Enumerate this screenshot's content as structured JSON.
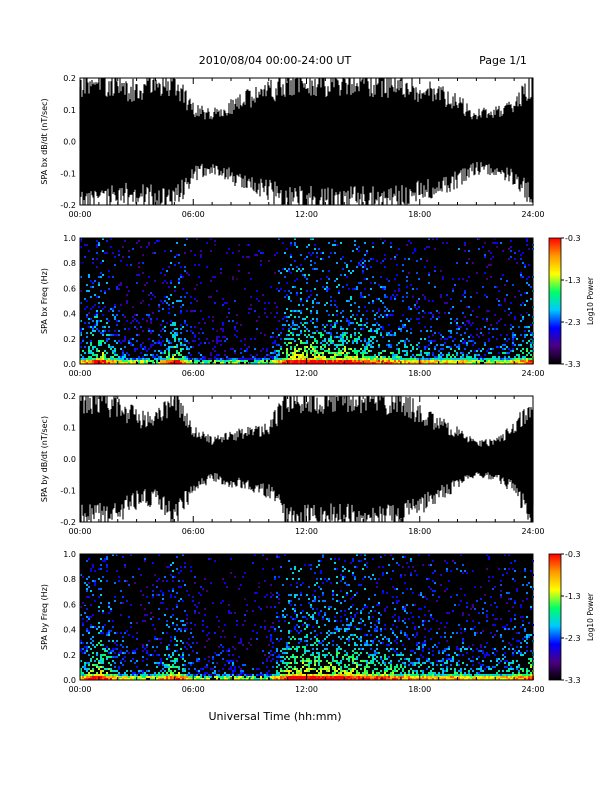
{
  "header": {
    "title": "2010/08/04  00:00-24:00 UT",
    "page": "Page 1/1"
  },
  "footer": {
    "xlabel": "Universal Time (hh:mm)"
  },
  "colorbar": {
    "label": "Log10 Power",
    "ticks": [
      "-0.3",
      "-1.3",
      "-2.3",
      "-3.3"
    ],
    "range": [
      -3.3,
      -0.3
    ],
    "stops": [
      "#000000",
      "#4b0082",
      "#0000ff",
      "#00c8ff",
      "#00ff66",
      "#ffff00",
      "#ff9900",
      "#ff0000"
    ]
  },
  "chart_data": [
    {
      "type": "line",
      "ylabel": "SPA bx dB/dt (nT/sec)",
      "xticks": [
        "00:00",
        "06:00",
        "12:00",
        "18:00",
        "24:00"
      ],
      "yticks": [
        "-0.2",
        "-0.1",
        "0.0",
        "0.1",
        "0.2"
      ],
      "xlim_hours": [
        0,
        24
      ],
      "ylim": [
        -0.2,
        0.2
      ],
      "envelope_hours": [
        0,
        1,
        2,
        3,
        4,
        5,
        6,
        7,
        8,
        9,
        10,
        11,
        12,
        13,
        14,
        15,
        16,
        17,
        18,
        19,
        20,
        21,
        22,
        23,
        24
      ],
      "envelope_amplitude": [
        0.2,
        0.2,
        0.19,
        0.17,
        0.2,
        0.2,
        0.11,
        0.09,
        0.12,
        0.15,
        0.17,
        0.2,
        0.2,
        0.2,
        0.2,
        0.2,
        0.2,
        0.19,
        0.17,
        0.16,
        0.13,
        0.09,
        0.1,
        0.12,
        0.2
      ]
    },
    {
      "type": "heatmap",
      "ylabel": "SPA bx Freq (Hz)",
      "xticks": [
        "00:00",
        "06:00",
        "12:00",
        "18:00",
        "24:00"
      ],
      "yticks": [
        "0.0",
        "0.2",
        "0.4",
        "0.6",
        "0.8",
        "1.0"
      ],
      "xlim_hours": [
        0,
        24
      ],
      "ylim": [
        0,
        1.0
      ],
      "clim": [
        -3.3,
        -0.3
      ],
      "activity_hours": [
        0,
        1,
        2,
        3,
        4,
        5,
        6,
        7,
        8,
        9,
        10,
        11,
        12,
        13,
        14,
        15,
        16,
        17,
        18,
        19,
        20,
        21,
        22,
        23,
        24
      ],
      "activity_level": [
        0.5,
        0.9,
        0.45,
        0.35,
        0.4,
        0.85,
        0.3,
        0.25,
        0.3,
        0.25,
        0.3,
        0.9,
        0.95,
        0.85,
        0.9,
        0.8,
        0.7,
        0.6,
        0.55,
        0.5,
        0.6,
        0.4,
        0.45,
        0.55,
        0.8
      ]
    },
    {
      "type": "line",
      "ylabel": "SPA by dB/dt (nT/sec)",
      "xticks": [
        "00:00",
        "06:00",
        "12:00",
        "18:00",
        "24:00"
      ],
      "yticks": [
        "-0.2",
        "-0.1",
        "0.0",
        "0.1",
        "0.2"
      ],
      "xlim_hours": [
        0,
        24
      ],
      "ylim": [
        -0.2,
        0.2
      ],
      "envelope_hours": [
        0,
        1,
        2,
        3,
        4,
        5,
        6,
        7,
        8,
        9,
        10,
        11,
        12,
        13,
        14,
        15,
        16,
        17,
        18,
        19,
        20,
        21,
        22,
        23,
        24
      ],
      "envelope_amplitude": [
        0.2,
        0.2,
        0.18,
        0.14,
        0.13,
        0.2,
        0.1,
        0.06,
        0.08,
        0.09,
        0.11,
        0.2,
        0.2,
        0.2,
        0.2,
        0.2,
        0.2,
        0.19,
        0.16,
        0.12,
        0.09,
        0.05,
        0.06,
        0.1,
        0.2
      ]
    },
    {
      "type": "heatmap",
      "ylabel": "SPA by Freq (Hz)",
      "xticks": [
        "00:00",
        "06:00",
        "12:00",
        "18:00",
        "24:00"
      ],
      "yticks": [
        "0.0",
        "0.2",
        "0.4",
        "0.6",
        "0.8",
        "1.0"
      ],
      "xlim_hours": [
        0,
        24
      ],
      "ylim": [
        0,
        1.0
      ],
      "clim": [
        -3.3,
        -0.3
      ],
      "activity_hours": [
        0,
        1,
        2,
        3,
        4,
        5,
        6,
        7,
        8,
        9,
        10,
        11,
        12,
        13,
        14,
        15,
        16,
        17,
        18,
        19,
        20,
        21,
        22,
        23,
        24
      ],
      "activity_level": [
        0.55,
        0.95,
        0.5,
        0.4,
        0.45,
        0.85,
        0.35,
        0.3,
        0.35,
        0.3,
        0.35,
        0.95,
        0.95,
        0.9,
        0.9,
        0.85,
        0.75,
        0.65,
        0.6,
        0.55,
        0.65,
        0.45,
        0.5,
        0.6,
        0.85
      ]
    }
  ]
}
